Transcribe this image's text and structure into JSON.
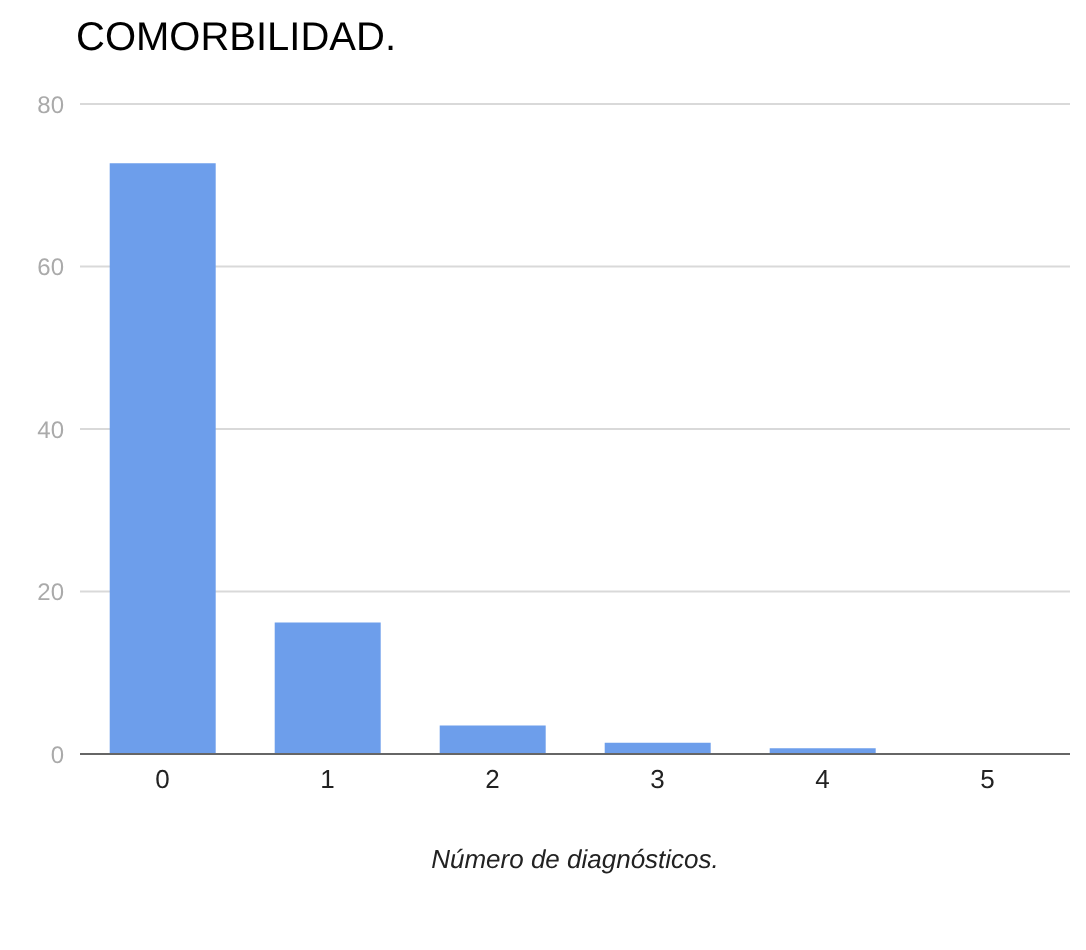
{
  "chart_data": {
    "type": "bar",
    "title": "COMORBILIDAD.",
    "xlabel": "Número de diagnósticos.",
    "categories": [
      "0",
      "1",
      "2",
      "3",
      "4",
      "5"
    ],
    "values": [
      72.7,
      16.2,
      3.5,
      1.4,
      0.7,
      0
    ],
    "color": "#6d9eeb",
    "ylim": [
      0,
      80
    ],
    "yticks": [
      0,
      20,
      40,
      60,
      80
    ],
    "grid": "y"
  }
}
